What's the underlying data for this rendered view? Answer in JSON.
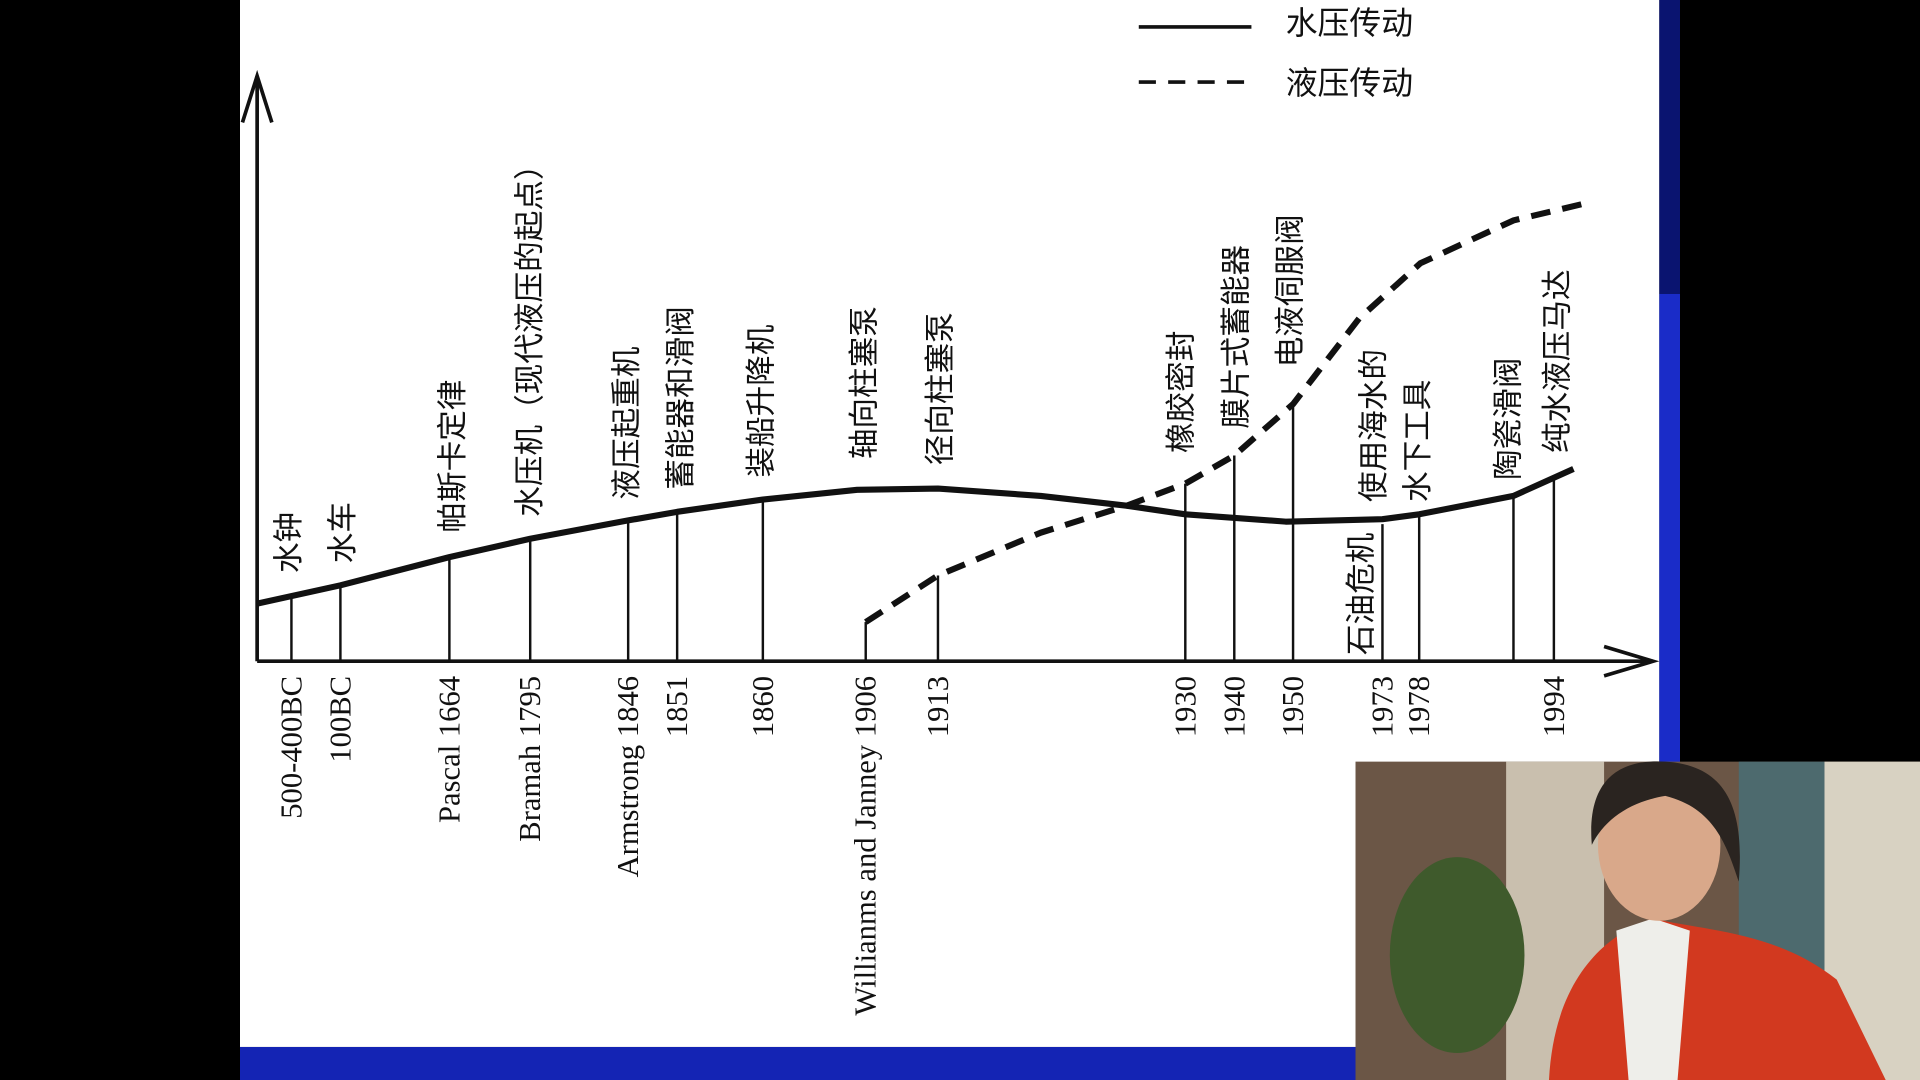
{
  "legend": [
    {
      "label": "水压传动"
    },
    {
      "label": "液压传动"
    }
  ],
  "events": [
    {
      "year": "500-400BC",
      "label": "水钟"
    },
    {
      "year": "100BC",
      "label": "水车"
    },
    {
      "year": "Pascal 1664",
      "label": "帕斯卡定律"
    },
    {
      "year": "Bramah 1795",
      "label": "水压机（现代液压的起点）"
    },
    {
      "year": "Armstrong 1846",
      "label": "液压起重机"
    },
    {
      "year": "1851",
      "label": "蓄能器和滑阀"
    },
    {
      "year": "1860",
      "label": "装船升降机"
    },
    {
      "year": "Willianms and Janney 1906",
      "label": "轴向柱塞泵"
    },
    {
      "year": "1913",
      "label": "径向柱塞泵"
    },
    {
      "year": "1930",
      "label": "橡胶密封"
    },
    {
      "year": "1940",
      "label": "膜片式蓄能器"
    },
    {
      "year": "1950",
      "label": "电液伺服阀"
    },
    {
      "year": "1973",
      "label": "石油危机"
    },
    {
      "year": "1978",
      "lines": [
        "使用海水的",
        "水下工具"
      ]
    },
    {
      "label": "陶瓷滑阀"
    },
    {
      "year": "1994",
      "label": "纯水液压马达"
    }
  ]
}
